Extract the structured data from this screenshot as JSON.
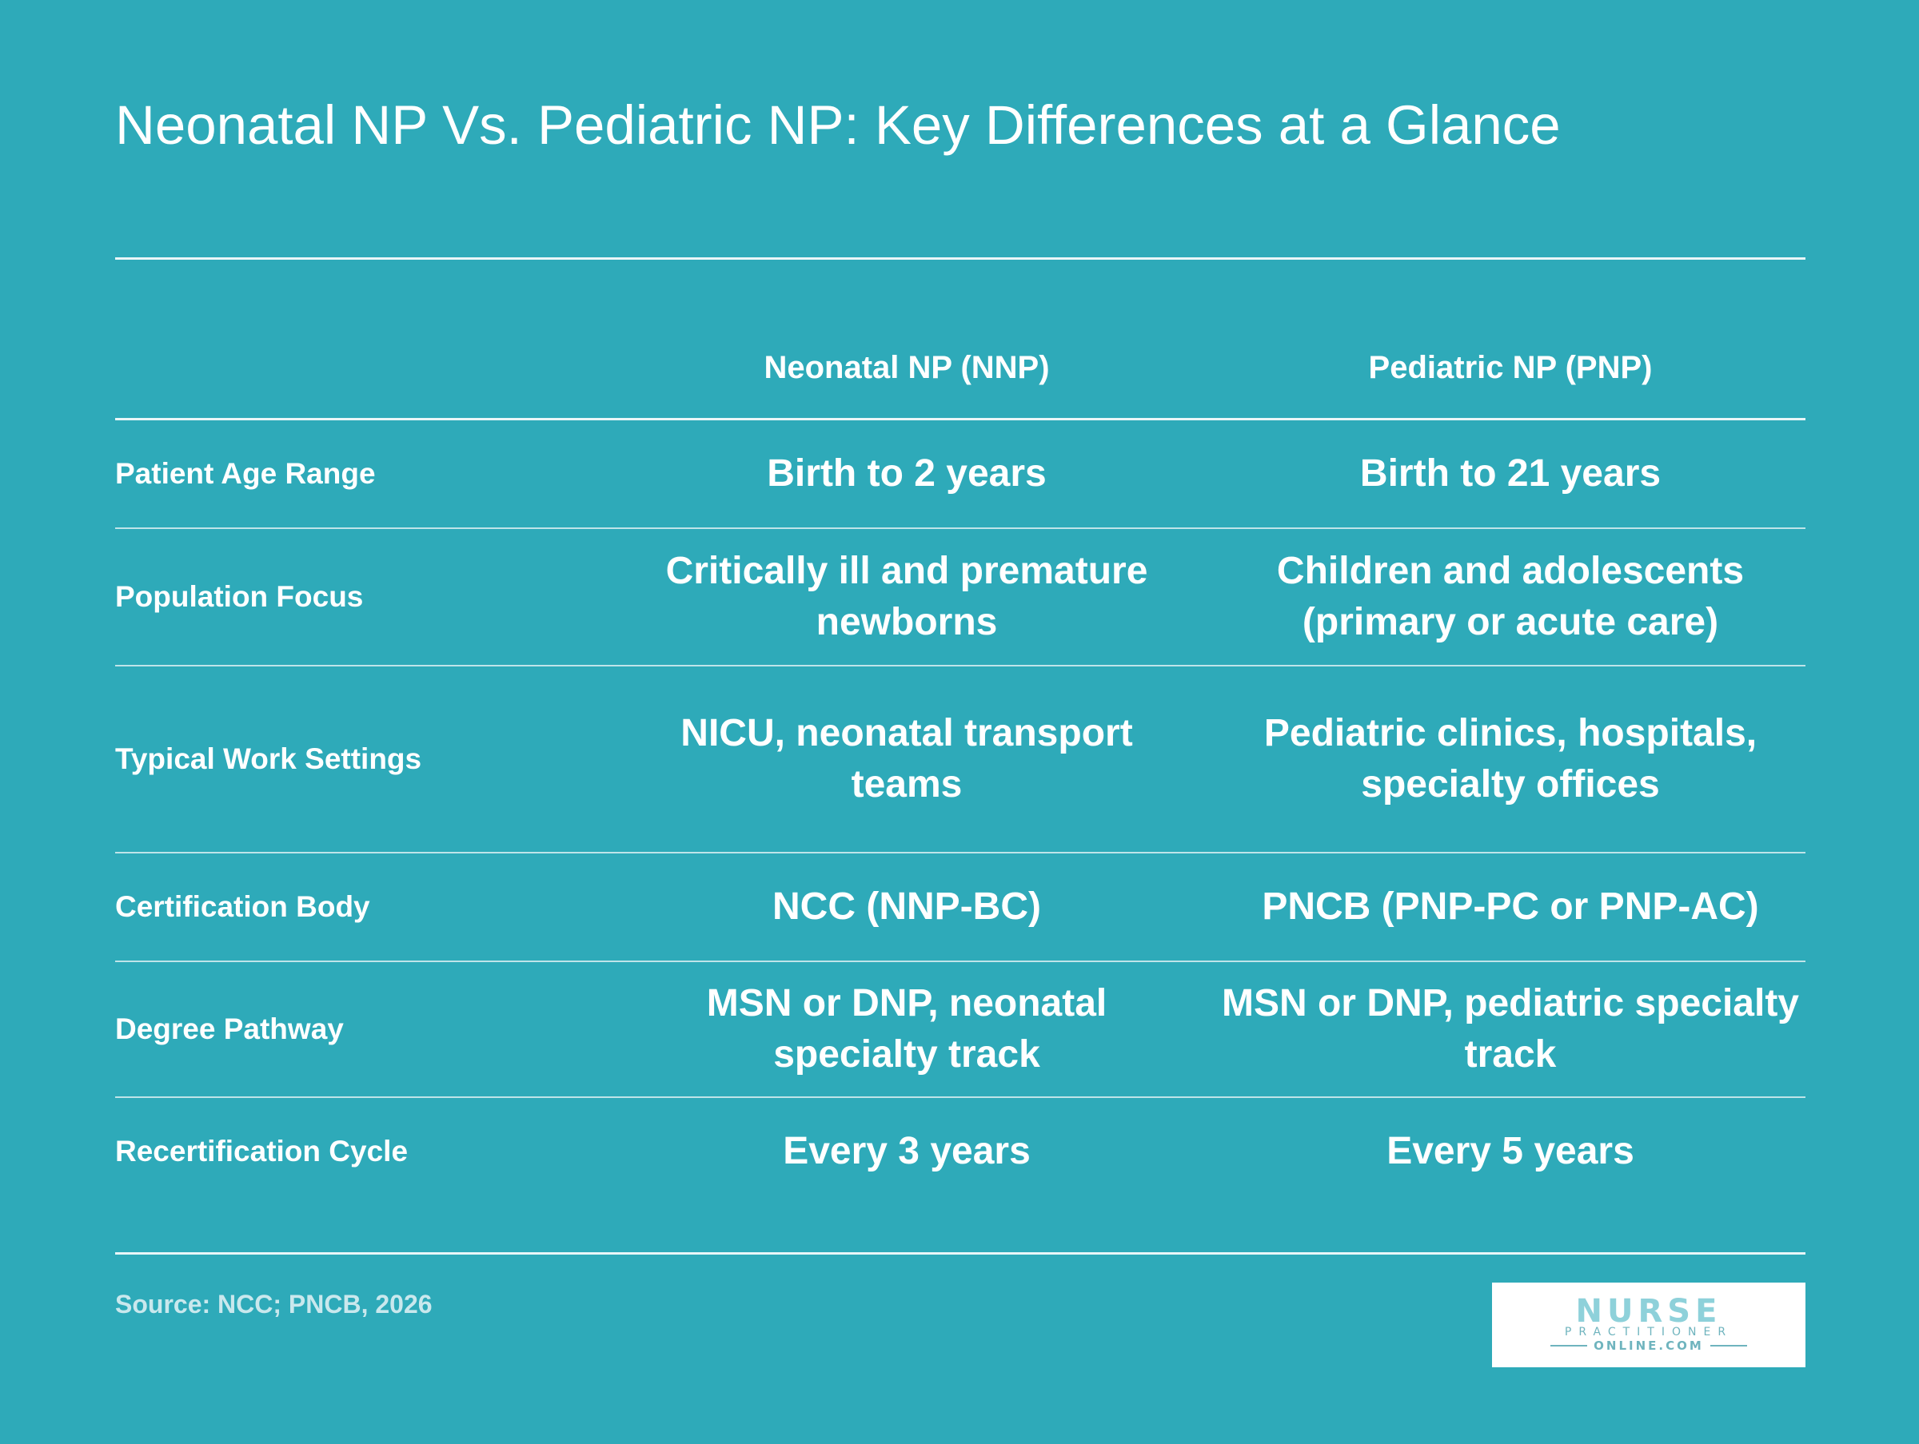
{
  "title": "Neonatal NP Vs. Pediatric NP: Key Differences at a Glance",
  "table": {
    "columns": [
      "Neonatal NP (NNP)",
      "Pediatric NP (PNP)"
    ],
    "rows": [
      {
        "label": "Patient Age Range",
        "nnp": "Birth to 2 years",
        "pnp": "Birth to 21 years"
      },
      {
        "label": "Population Focus",
        "nnp": "Critically ill and premature newborns",
        "pnp": "Children and adolescents (primary or acute care)"
      },
      {
        "label": "Typical Work Settings",
        "nnp": "NICU, neonatal transport teams",
        "pnp": "Pediatric clinics, hospitals, specialty offices"
      },
      {
        "label": "Certification Body",
        "nnp": "NCC (NNP-BC)",
        "pnp": "PNCB (PNP-PC or PNP-AC)"
      },
      {
        "label": "Degree Pathway",
        "nnp": "MSN or DNP, neonatal specialty track",
        "pnp": "MSN or DNP, pediatric specialty track"
      },
      {
        "label": "Recertification Cycle",
        "nnp": "Every 3 years",
        "pnp": "Every 5 years"
      }
    ]
  },
  "source": "Source: NCC; PNCB, 2026",
  "logo": {
    "main": "NURSE",
    "sub": "PRACTITIONER",
    "url": "ONLINE.COM"
  },
  "colors": {
    "background": "#2eaab9",
    "text": "#ffffff",
    "source_text": "#c9e8ed",
    "logo_text": "#8ed1da"
  }
}
